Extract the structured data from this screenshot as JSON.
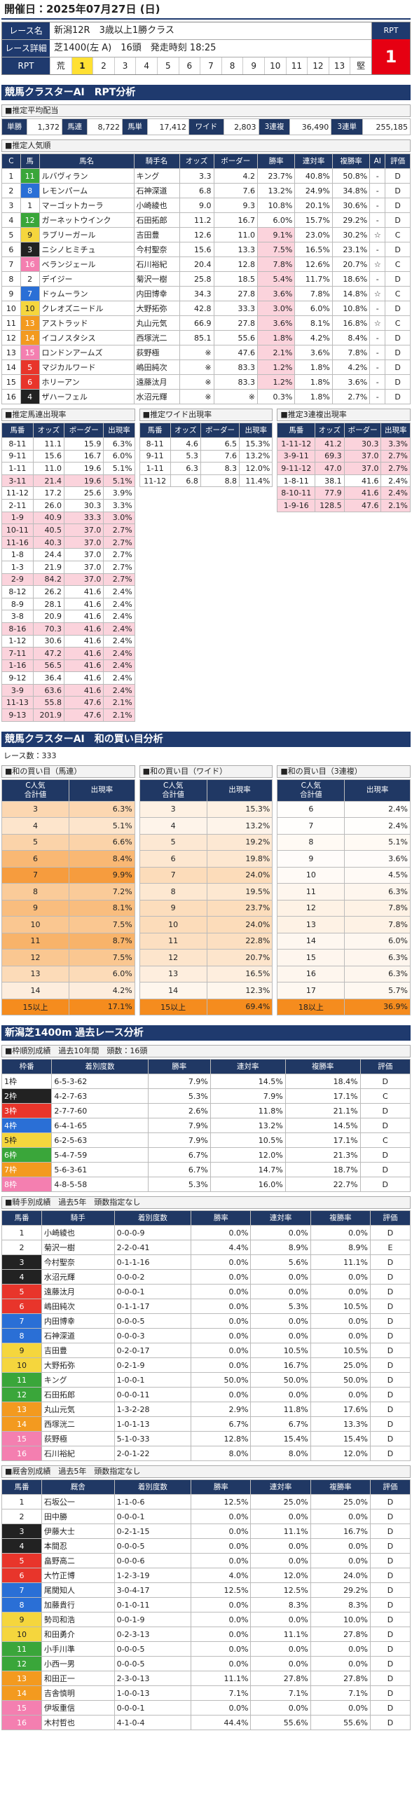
{
  "header": {
    "date": "開催日：2025年07月27日 (日)"
  },
  "race": {
    "name_label": "レース名",
    "name": "新潟12R　3歳以上1勝クラス",
    "detail_label": "レース詳細",
    "detail": "芝1400(左 A)　16頭　発走時刻 18:25",
    "rpt_label": "RPT",
    "rpt_title": "RPT",
    "rpt": "1",
    "scale_low": "荒",
    "scale": [
      "1",
      "2",
      "3",
      "4",
      "5",
      "6",
      "7",
      "8",
      "9",
      "10",
      "11",
      "12",
      "13"
    ],
    "scale_high": "堅"
  },
  "rpt_analysis": {
    "title": "競馬クラスターAI　RPT分析",
    "payout": {
      "title": "■推定平均配当",
      "items": [
        {
          "label": "単勝",
          "value": "1,372"
        },
        {
          "label": "馬連",
          "value": "8,722"
        },
        {
          "label": "馬単",
          "value": "17,412"
        },
        {
          "label": "ワイド",
          "value": "2,803"
        },
        {
          "label": "3連複",
          "value": "36,490"
        },
        {
          "label": "3連単",
          "value": "255,185"
        }
      ]
    },
    "popularity": {
      "title": "■推定人気順",
      "headers": [
        "C",
        "馬",
        "馬名",
        "騎手名",
        "オッズ",
        "ボーダー",
        "勝率",
        "連対率",
        "複勝率",
        "AI",
        "評価"
      ],
      "rows": [
        [
          "1",
          "11",
          "ルバヴィラン",
          "キング",
          "3.3",
          "4.2",
          "23.7%",
          "40.8%",
          "50.8%",
          "-",
          "D"
        ],
        [
          "2",
          "8",
          "レモンパーム",
          "石神深道",
          "6.8",
          "7.6",
          "13.2%",
          "24.9%",
          "34.8%",
          "-",
          "D"
        ],
        [
          "3",
          "1",
          "マーゴットカーラ",
          "小崎綾也",
          "9.0",
          "9.3",
          "10.8%",
          "20.1%",
          "30.6%",
          "-",
          "D"
        ],
        [
          "4",
          "12",
          "ガーネットウインク",
          "石田拓郎",
          "11.2",
          "16.7",
          "6.0%",
          "15.7%",
          "29.2%",
          "-",
          "D"
        ],
        [
          "5",
          "9",
          "ラブリーガール",
          "吉田豊",
          "12.6",
          "11.0",
          "9.1%",
          "23.0%",
          "30.2%",
          "☆",
          "C"
        ],
        [
          "6",
          "3",
          "ニシノヒミチュ",
          "今村聖奈",
          "15.6",
          "13.3",
          "7.5%",
          "16.5%",
          "23.1%",
          "-",
          "D"
        ],
        [
          "7",
          "16",
          "ベランジェール",
          "石川裕紀",
          "20.4",
          "12.8",
          "7.8%",
          "12.6%",
          "20.7%",
          "☆",
          "C"
        ],
        [
          "8",
          "2",
          "デイジー",
          "菊沢一樹",
          "25.8",
          "18.5",
          "5.4%",
          "11.7%",
          "18.6%",
          "-",
          "D"
        ],
        [
          "9",
          "7",
          "ドゥムーラン",
          "内田博幸",
          "34.3",
          "27.8",
          "3.6%",
          "7.8%",
          "14.8%",
          "☆",
          "C"
        ],
        [
          "10",
          "10",
          "クレオズニードル",
          "大野拓弥",
          "42.8",
          "33.3",
          "3.0%",
          "6.0%",
          "10.8%",
          "-",
          "D"
        ],
        [
          "11",
          "13",
          "アストラッド",
          "丸山元気",
          "66.9",
          "27.8",
          "3.6%",
          "8.1%",
          "16.8%",
          "☆",
          "C"
        ],
        [
          "12",
          "14",
          "イコノスタシス",
          "西塚洸二",
          "85.1",
          "55.6",
          "1.8%",
          "4.2%",
          "8.4%",
          "-",
          "D"
        ],
        [
          "13",
          "15",
          "ロンドンアームズ",
          "荻野極",
          "※",
          "47.6",
          "2.1%",
          "3.6%",
          "7.8%",
          "-",
          "D"
        ],
        [
          "14",
          "5",
          "マジカルワード",
          "嶋田純次",
          "※",
          "83.3",
          "1.2%",
          "1.8%",
          "4.2%",
          "-",
          "D"
        ],
        [
          "15",
          "6",
          "ホリーアン",
          "遠藤汰月",
          "※",
          "83.3",
          "1.2%",
          "1.8%",
          "3.6%",
          "-",
          "D"
        ],
        [
          "16",
          "4",
          "ザハーフェル",
          "水沼元輝",
          "※",
          "※",
          "0.3%",
          "1.8%",
          "2.7%",
          "-",
          "D"
        ]
      ]
    },
    "quinella": {
      "title": "■推定馬連出現率",
      "headers": [
        "馬番",
        "オッズ",
        "ボーダー",
        "出現率"
      ],
      "rows": [
        [
          "8-11",
          "11.1",
          "15.9",
          "6.3%"
        ],
        [
          "9-11",
          "15.6",
          "16.7",
          "6.0%"
        ],
        [
          "1-11",
          "11.0",
          "19.6",
          "5.1%"
        ],
        [
          "3-11",
          "21.4",
          "19.6",
          "5.1%"
        ],
        [
          "11-12",
          "17.2",
          "25.6",
          "3.9%"
        ],
        [
          "2-11",
          "26.0",
          "30.3",
          "3.3%"
        ],
        [
          "1-9",
          "40.9",
          "33.3",
          "3.0%"
        ],
        [
          "10-11",
          "40.5",
          "37.0",
          "2.7%"
        ],
        [
          "11-16",
          "40.3",
          "37.0",
          "2.7%"
        ],
        [
          "1-8",
          "24.4",
          "37.0",
          "2.7%"
        ],
        [
          "1-3",
          "21.9",
          "37.0",
          "2.7%"
        ],
        [
          "2-9",
          "84.2",
          "37.0",
          "2.7%"
        ],
        [
          "8-12",
          "26.2",
          "41.6",
          "2.4%"
        ],
        [
          "8-9",
          "28.1",
          "41.6",
          "2.4%"
        ],
        [
          "3-8",
          "20.9",
          "41.6",
          "2.4%"
        ],
        [
          "8-16",
          "70.3",
          "41.6",
          "2.4%"
        ],
        [
          "1-12",
          "30.6",
          "41.6",
          "2.4%"
        ],
        [
          "7-11",
          "47.2",
          "41.6",
          "2.4%"
        ],
        [
          "1-16",
          "56.5",
          "41.6",
          "2.4%"
        ],
        [
          "9-12",
          "36.4",
          "41.6",
          "2.4%"
        ],
        [
          "3-9",
          "63.6",
          "41.6",
          "2.4%"
        ],
        [
          "11-13",
          "55.8",
          "47.6",
          "2.1%"
        ],
        [
          "9-13",
          "201.9",
          "47.6",
          "2.1%"
        ]
      ]
    },
    "wide": {
      "title": "■推定ワイド出現率",
      "headers": [
        "馬番",
        "オッズ",
        "ボーダー",
        "出現率"
      ],
      "rows": [
        [
          "8-11",
          "4.6",
          "6.5",
          "15.3%"
        ],
        [
          "9-11",
          "5.3",
          "7.6",
          "13.2%"
        ],
        [
          "1-11",
          "6.3",
          "8.3",
          "12.0%"
        ],
        [
          "11-12",
          "6.8",
          "8.8",
          "11.4%"
        ]
      ]
    },
    "trio": {
      "title": "■推定3連複出現率",
      "headers": [
        "馬番",
        "オッズ",
        "ボーダー",
        "出現率"
      ],
      "rows": [
        [
          "1-11-12",
          "41.2",
          "30.3",
          "3.3%"
        ],
        [
          "3-9-11",
          "69.3",
          "37.0",
          "2.7%"
        ],
        [
          "9-11-12",
          "47.0",
          "37.0",
          "2.7%"
        ],
        [
          "1-8-11",
          "38.1",
          "41.6",
          "2.4%"
        ],
        [
          "8-10-11",
          "77.9",
          "41.6",
          "2.4%"
        ],
        [
          "1-9-16",
          "128.5",
          "47.6",
          "2.1%"
        ]
      ]
    }
  },
  "sum_analysis": {
    "title": "競馬クラスターAI　和の買い目分析",
    "races": "レース数：333",
    "quinella": {
      "title": "■和の買い目（馬連）",
      "headers": [
        "C人気\n合計値",
        "出現率"
      ],
      "rows": [
        [
          "3",
          "6.3%"
        ],
        [
          "4",
          "5.1%"
        ],
        [
          "5",
          "6.6%"
        ],
        [
          "6",
          "8.4%"
        ],
        [
          "7",
          "9.9%"
        ],
        [
          "8",
          "7.2%"
        ],
        [
          "9",
          "8.1%"
        ],
        [
          "10",
          "7.5%"
        ],
        [
          "11",
          "8.7%"
        ],
        [
          "12",
          "7.5%"
        ],
        [
          "13",
          "6.0%"
        ],
        [
          "14",
          "4.2%"
        ],
        [
          "15以上",
          "17.1%"
        ]
      ]
    },
    "wide": {
      "title": "■和の買い目（ワイド）",
      "headers": [
        "C人気\n合計値",
        "出現率"
      ],
      "rows": [
        [
          "3",
          "15.3%"
        ],
        [
          "4",
          "13.2%"
        ],
        [
          "5",
          "19.2%"
        ],
        [
          "6",
          "19.8%"
        ],
        [
          "7",
          "24.0%"
        ],
        [
          "8",
          "19.5%"
        ],
        [
          "9",
          "23.7%"
        ],
        [
          "10",
          "24.0%"
        ],
        [
          "11",
          "22.8%"
        ],
        [
          "12",
          "20.7%"
        ],
        [
          "13",
          "16.5%"
        ],
        [
          "14",
          "12.3%"
        ],
        [
          "15以上",
          "69.4%"
        ]
      ]
    },
    "trio": {
      "title": "■和の買い目（3連複）",
      "headers": [
        "C人気\n合計値",
        "出現率"
      ],
      "rows": [
        [
          "6",
          "2.4%"
        ],
        [
          "7",
          "2.4%"
        ],
        [
          "8",
          "5.1%"
        ],
        [
          "9",
          "3.6%"
        ],
        [
          "10",
          "4.5%"
        ],
        [
          "11",
          "6.3%"
        ],
        [
          "12",
          "7.8%"
        ],
        [
          "13",
          "7.8%"
        ],
        [
          "14",
          "6.0%"
        ],
        [
          "15",
          "6.3%"
        ],
        [
          "16",
          "6.3%"
        ],
        [
          "17",
          "5.7%"
        ],
        [
          "18以上",
          "36.9%"
        ]
      ]
    }
  },
  "past": {
    "title": "新潟芝1400m 過去レース分析",
    "gate": {
      "title": "■枠順別成績　過去10年間　頭数：16頭",
      "headers": [
        "枠番",
        "着別度数",
        "勝率",
        "連対率",
        "複勝率",
        "評価"
      ],
      "rows": [
        [
          "1枠",
          "6-5-3-62",
          "7.9%",
          "14.5%",
          "18.4%",
          "D"
        ],
        [
          "2枠",
          "4-2-7-63",
          "5.3%",
          "7.9%",
          "17.1%",
          "C"
        ],
        [
          "3枠",
          "2-7-7-60",
          "2.6%",
          "11.8%",
          "21.1%",
          "D"
        ],
        [
          "4枠",
          "6-4-1-65",
          "7.9%",
          "13.2%",
          "14.5%",
          "D"
        ],
        [
          "5枠",
          "6-2-5-63",
          "7.9%",
          "10.5%",
          "17.1%",
          "C"
        ],
        [
          "6枠",
          "5-4-7-59",
          "6.7%",
          "12.0%",
          "21.3%",
          "D"
        ],
        [
          "7枠",
          "5-6-3-61",
          "6.7%",
          "14.7%",
          "18.7%",
          "D"
        ],
        [
          "8枠",
          "4-8-5-58",
          "5.3%",
          "16.0%",
          "22.7%",
          "D"
        ]
      ]
    },
    "jockey": {
      "title": "■騎手別成績　過去5年　頭数指定なし",
      "headers": [
        "馬番",
        "騎手",
        "着別度数",
        "勝率",
        "連対率",
        "複勝率",
        "評価"
      ],
      "rows": [
        [
          "1",
          "小崎綾也",
          "0-0-0-9",
          "0.0%",
          "0.0%",
          "0.0%",
          "D"
        ],
        [
          "2",
          "菊沢一樹",
          "2-2-0-41",
          "4.4%",
          "8.9%",
          "8.9%",
          "E"
        ],
        [
          "3",
          "今村聖奈",
          "0-1-1-16",
          "0.0%",
          "5.6%",
          "11.1%",
          "D"
        ],
        [
          "4",
          "水沼元輝",
          "0-0-0-2",
          "0.0%",
          "0.0%",
          "0.0%",
          "D"
        ],
        [
          "5",
          "遠藤汰月",
          "0-0-0-1",
          "0.0%",
          "0.0%",
          "0.0%",
          "D"
        ],
        [
          "6",
          "嶋田純次",
          "0-1-1-17",
          "0.0%",
          "5.3%",
          "10.5%",
          "D"
        ],
        [
          "7",
          "内田博幸",
          "0-0-0-5",
          "0.0%",
          "0.0%",
          "0.0%",
          "D"
        ],
        [
          "8",
          "石神深道",
          "0-0-0-3",
          "0.0%",
          "0.0%",
          "0.0%",
          "D"
        ],
        [
          "9",
          "吉田豊",
          "0-2-0-17",
          "0.0%",
          "10.5%",
          "10.5%",
          "D"
        ],
        [
          "10",
          "大野拓弥",
          "0-2-1-9",
          "0.0%",
          "16.7%",
          "25.0%",
          "D"
        ],
        [
          "11",
          "キング",
          "1-0-0-1",
          "50.0%",
          "50.0%",
          "50.0%",
          "D"
        ],
        [
          "12",
          "石田拓郎",
          "0-0-0-11",
          "0.0%",
          "0.0%",
          "0.0%",
          "D"
        ],
        [
          "13",
          "丸山元気",
          "1-3-2-28",
          "2.9%",
          "11.8%",
          "17.6%",
          "D"
        ],
        [
          "14",
          "西塚洸二",
          "1-0-1-13",
          "6.7%",
          "6.7%",
          "13.3%",
          "D"
        ],
        [
          "15",
          "荻野極",
          "5-1-0-33",
          "12.8%",
          "15.4%",
          "15.4%",
          "D"
        ],
        [
          "16",
          "石川裕紀",
          "2-0-1-22",
          "8.0%",
          "8.0%",
          "12.0%",
          "D"
        ]
      ]
    },
    "trainer": {
      "title": "■厩舎別成績　過去5年　頭数指定なし",
      "headers": [
        "馬番",
        "厩舎",
        "着別度数",
        "勝率",
        "連対率",
        "複勝率",
        "評価"
      ],
      "rows": [
        [
          "1",
          "石坂公一",
          "1-1-0-6",
          "12.5%",
          "25.0%",
          "25.0%",
          "D"
        ],
        [
          "2",
          "田中勝",
          "0-0-0-1",
          "0.0%",
          "0.0%",
          "0.0%",
          "D"
        ],
        [
          "3",
          "伊藤大士",
          "0-2-1-15",
          "0.0%",
          "11.1%",
          "16.7%",
          "D"
        ],
        [
          "4",
          "本間忍",
          "0-0-0-5",
          "0.0%",
          "0.0%",
          "0.0%",
          "D"
        ],
        [
          "5",
          "畠野高二",
          "0-0-0-6",
          "0.0%",
          "0.0%",
          "0.0%",
          "D"
        ],
        [
          "6",
          "大竹正博",
          "1-2-3-19",
          "4.0%",
          "12.0%",
          "24.0%",
          "D"
        ],
        [
          "7",
          "尾関知人",
          "3-0-4-17",
          "12.5%",
          "12.5%",
          "29.2%",
          "D"
        ],
        [
          "8",
          "加藤貴行",
          "0-1-0-11",
          "0.0%",
          "8.3%",
          "8.3%",
          "D"
        ],
        [
          "9",
          "勢司和浩",
          "0-0-1-9",
          "0.0%",
          "0.0%",
          "10.0%",
          "D"
        ],
        [
          "10",
          "和田勇介",
          "0-2-3-13",
          "0.0%",
          "11.1%",
          "27.8%",
          "D"
        ],
        [
          "11",
          "小手川準",
          "0-0-0-5",
          "0.0%",
          "0.0%",
          "0.0%",
          "D"
        ],
        [
          "12",
          "小西一男",
          "0-0-0-5",
          "0.0%",
          "0.0%",
          "0.0%",
          "D"
        ],
        [
          "13",
          "和田正一",
          "2-3-0-13",
          "11.1%",
          "27.8%",
          "27.8%",
          "D"
        ],
        [
          "14",
          "吉舎慎明",
          "1-0-0-13",
          "7.1%",
          "7.1%",
          "7.1%",
          "D"
        ],
        [
          "15",
          "伊坂重信",
          "0-0-0-1",
          "0.0%",
          "0.0%",
          "0.0%",
          "D"
        ],
        [
          "16",
          "木村哲也",
          "4-1-0-4",
          "44.4%",
          "55.6%",
          "55.6%",
          "D"
        ]
      ]
    }
  }
}
